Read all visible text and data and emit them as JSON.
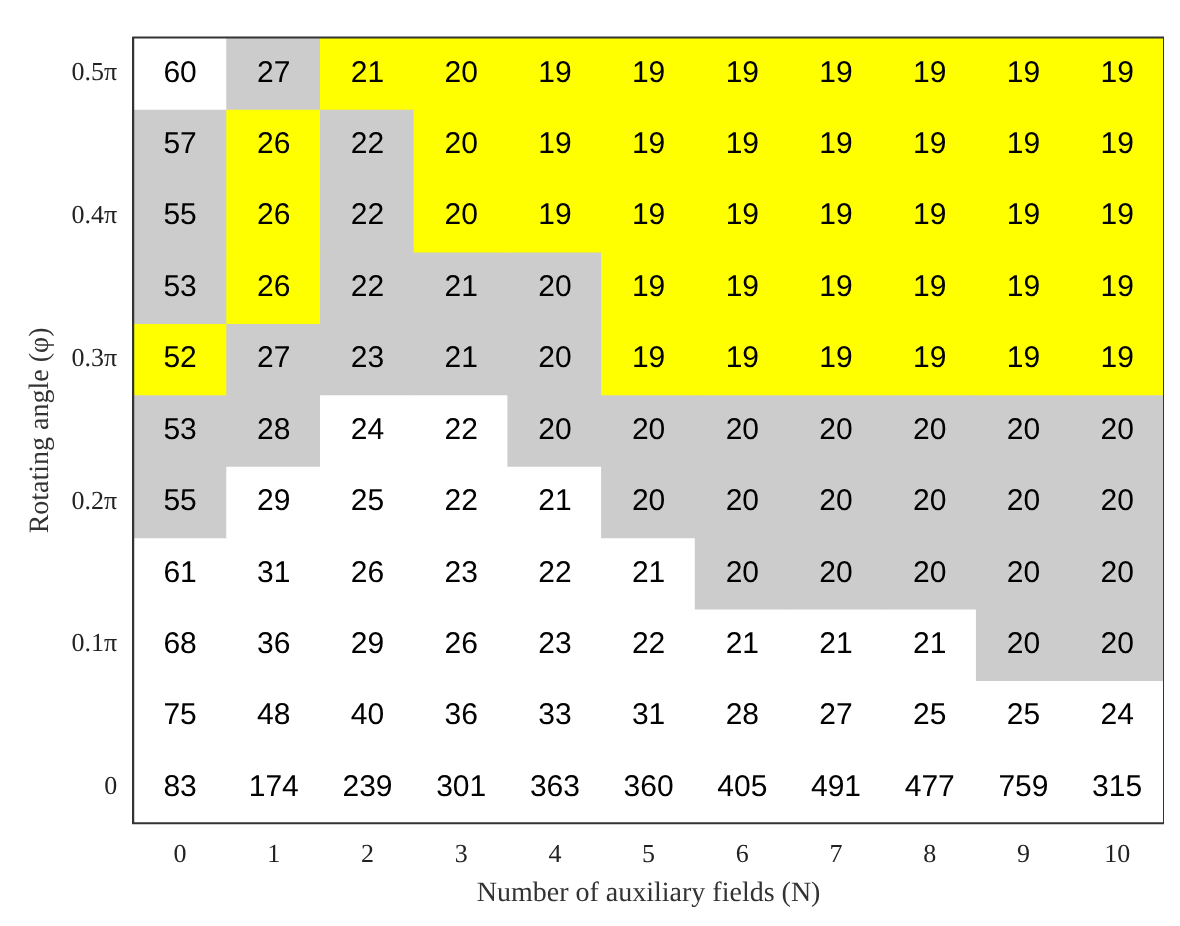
{
  "chart_data": {
    "type": "heatmap",
    "xlabel": "Number of auxiliary fields (N)",
    "ylabel": "Rotating angle (φ)",
    "data_labels": true,
    "categories": [
      "0",
      "1",
      "2",
      "3",
      "4",
      "5",
      "6",
      "7",
      "8",
      "9",
      "10"
    ],
    "y_categories": [
      "0.5π",
      null,
      "0.4π",
      null,
      "0.3π",
      null,
      "0.2π",
      null,
      "0.1π",
      null,
      "0"
    ],
    "cells": [
      [
        60,
        27,
        21,
        20,
        19,
        19,
        19,
        19,
        19,
        19,
        19
      ],
      [
        57,
        26,
        22,
        20,
        19,
        19,
        19,
        19,
        19,
        19,
        19
      ],
      [
        55,
        26,
        22,
        20,
        19,
        19,
        19,
        19,
        19,
        19,
        19
      ],
      [
        53,
        26,
        22,
        21,
        20,
        19,
        19,
        19,
        19,
        19,
        19
      ],
      [
        52,
        27,
        23,
        21,
        20,
        19,
        19,
        19,
        19,
        19,
        19
      ],
      [
        53,
        28,
        24,
        22,
        20,
        20,
        20,
        20,
        20,
        20,
        20
      ],
      [
        55,
        29,
        25,
        22,
        21,
        20,
        20,
        20,
        20,
        20,
        20
      ],
      [
        61,
        31,
        26,
        23,
        22,
        21,
        20,
        20,
        20,
        20,
        20
      ],
      [
        68,
        36,
        29,
        26,
        23,
        22,
        21,
        21,
        21,
        20,
        20
      ],
      [
        75,
        48,
        40,
        36,
        33,
        31,
        28,
        27,
        25,
        25,
        24
      ],
      [
        83,
        174,
        239,
        301,
        363,
        360,
        405,
        491,
        477,
        759,
        315
      ]
    ],
    "colors": [
      [
        "#ffffff",
        "#cccccc",
        "#ffff00",
        "#ffff00",
        "#ffff00",
        "#ffff00",
        "#ffff00",
        "#ffff00",
        "#ffff00",
        "#ffff00",
        "#ffff00"
      ],
      [
        "#cccccc",
        "#ffff00",
        "#cccccc",
        "#ffff00",
        "#ffff00",
        "#ffff00",
        "#ffff00",
        "#ffff00",
        "#ffff00",
        "#ffff00",
        "#ffff00"
      ],
      [
        "#cccccc",
        "#ffff00",
        "#cccccc",
        "#ffff00",
        "#ffff00",
        "#ffff00",
        "#ffff00",
        "#ffff00",
        "#ffff00",
        "#ffff00",
        "#ffff00"
      ],
      [
        "#cccccc",
        "#ffff00",
        "#cccccc",
        "#cccccc",
        "#cccccc",
        "#ffff00",
        "#ffff00",
        "#ffff00",
        "#ffff00",
        "#ffff00",
        "#ffff00"
      ],
      [
        "#ffff00",
        "#cccccc",
        "#cccccc",
        "#cccccc",
        "#cccccc",
        "#ffff00",
        "#ffff00",
        "#ffff00",
        "#ffff00",
        "#ffff00",
        "#ffff00"
      ],
      [
        "#cccccc",
        "#cccccc",
        "#ffffff",
        "#ffffff",
        "#cccccc",
        "#cccccc",
        "#cccccc",
        "#cccccc",
        "#cccccc",
        "#cccccc",
        "#cccccc"
      ],
      [
        "#cccccc",
        "#ffffff",
        "#ffffff",
        "#ffffff",
        "#ffffff",
        "#cccccc",
        "#cccccc",
        "#cccccc",
        "#cccccc",
        "#cccccc",
        "#cccccc"
      ],
      [
        "#ffffff",
        "#ffffff",
        "#ffffff",
        "#ffffff",
        "#ffffff",
        "#ffffff",
        "#cccccc",
        "#cccccc",
        "#cccccc",
        "#cccccc",
        "#cccccc"
      ],
      [
        "#ffffff",
        "#ffffff",
        "#ffffff",
        "#ffffff",
        "#ffffff",
        "#ffffff",
        "#ffffff",
        "#ffffff",
        "#ffffff",
        "#cccccc",
        "#cccccc"
      ],
      [
        "#ffffff",
        "#ffffff",
        "#ffffff",
        "#ffffff",
        "#ffffff",
        "#ffffff",
        "#ffffff",
        "#ffffff",
        "#ffffff",
        "#ffffff",
        "#ffffff"
      ],
      [
        "#ffffff",
        "#ffffff",
        "#ffffff",
        "#ffffff",
        "#ffffff",
        "#ffffff",
        "#ffffff",
        "#ffffff",
        "#ffffff",
        "#ffffff",
        "#ffffff"
      ]
    ]
  }
}
